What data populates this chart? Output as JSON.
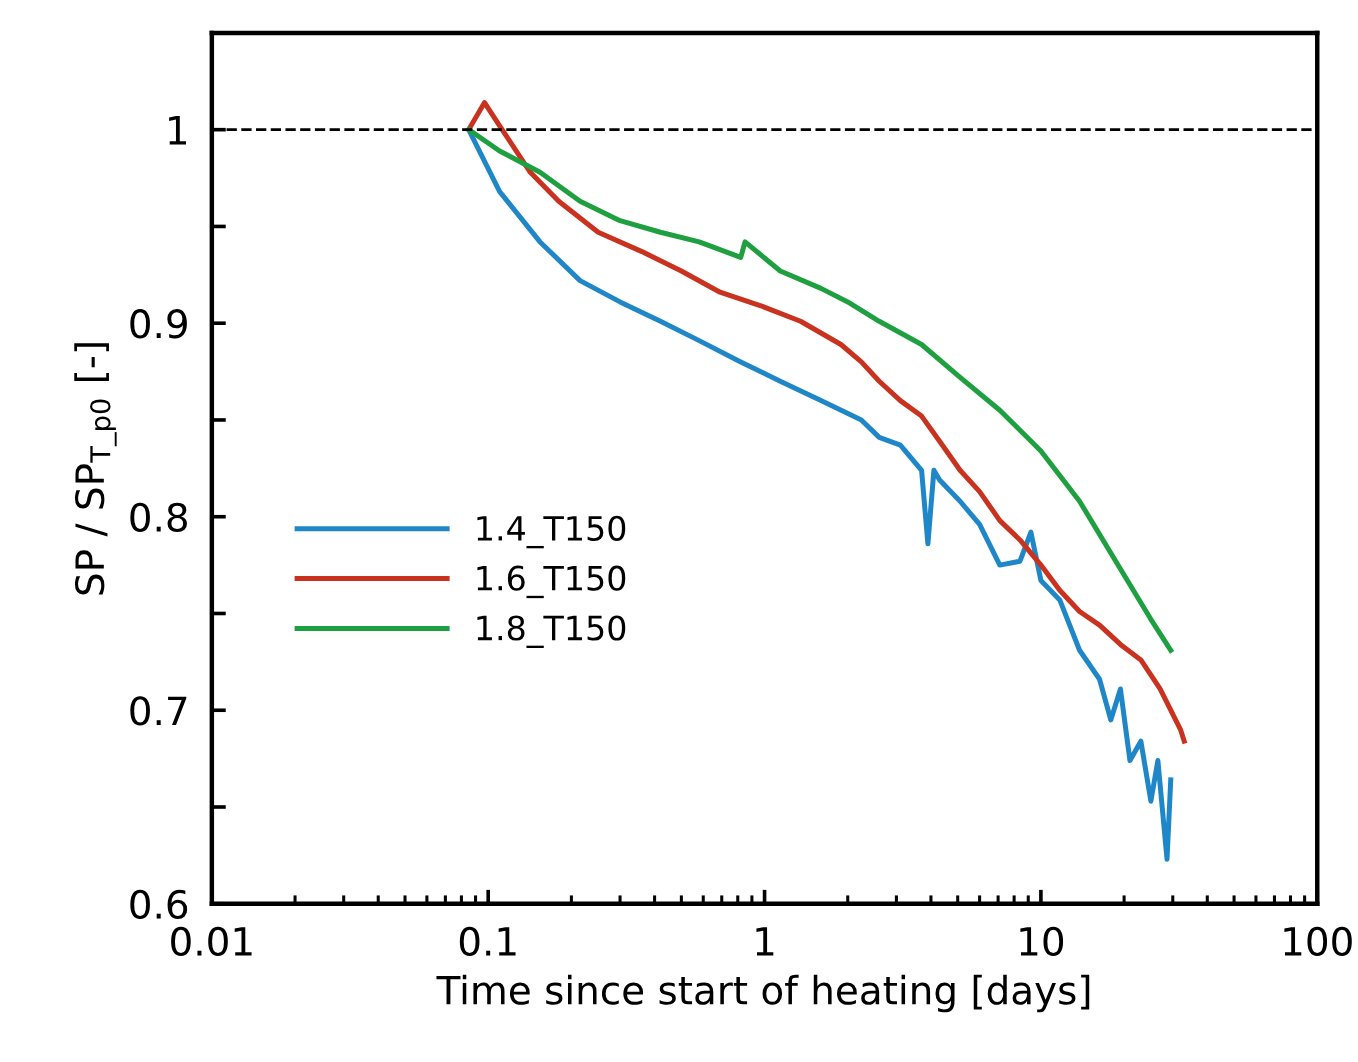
{
  "chart_data": {
    "type": "line",
    "xlabel": "Time since start of heating [days]",
    "ylabel": "SP / SP$_{T_p0}$ [-]",
    "log": "x",
    "xlim": [
      0.01,
      100
    ],
    "xticks": [
      0.01,
      0.1,
      1,
      10,
      100
    ],
    "ylim": [
      0.6,
      1.05
    ],
    "yticks": [
      0.6,
      {
        "value": 0.65,
        "label": null
      },
      0.7,
      {
        "value": 0.75,
        "label": null
      },
      0.8,
      {
        "value": 0.85,
        "label": null
      },
      0.9,
      {
        "value": 0.95,
        "label": null
      },
      1
    ],
    "grid": false,
    "legend": "center left",
    "marker": "none",
    "line_style": "solid",
    "ref_lines": [
      {
        "axis": "y",
        "value": 1,
        "color": "#000000",
        "line_style": "dashed"
      }
    ],
    "series": [
      {
        "name": "1.4_T150",
        "color": "#1f87c8",
        "x": [
          0.085,
          0.11,
          0.154,
          0.215,
          0.3,
          0.42,
          0.58,
          0.82,
          1.14,
          1.6,
          2.24,
          2.6,
          3.1,
          3.7,
          3.9,
          4.1,
          4.3,
          5.1,
          6.0,
          7.1,
          8.4,
          9.2,
          10,
          11.7,
          13.8,
          16.3,
          17.9,
          19.4,
          21,
          23,
          25,
          26.5,
          28.6,
          29.5
        ],
        "values": [
          1.0,
          0.968,
          0.942,
          0.922,
          0.911,
          0.901,
          0.891,
          0.88,
          0.87,
          0.86,
          0.85,
          0.841,
          0.837,
          0.824,
          0.786,
          0.824,
          0.819,
          0.808,
          0.796,
          0.775,
          0.777,
          0.792,
          0.767,
          0.757,
          0.731,
          0.716,
          0.695,
          0.711,
          0.674,
          0.684,
          0.653,
          0.674,
          0.623,
          0.664
        ]
      },
      {
        "name": "1.6_T150",
        "color": "#c8321e",
        "x": [
          0.085,
          0.097,
          0.11,
          0.142,
          0.18,
          0.25,
          0.36,
          0.5,
          0.69,
          0.97,
          1.35,
          1.89,
          2.24,
          2.6,
          3.1,
          3.7,
          4.3,
          5.1,
          6.0,
          7.1,
          8.4,
          10,
          11.7,
          13.8,
          16.3,
          19.4,
          23,
          27,
          32,
          33
        ],
        "values": [
          1.0,
          1.014,
          1.002,
          0.978,
          0.963,
          0.947,
          0.937,
          0.927,
          0.916,
          0.909,
          0.901,
          0.889,
          0.88,
          0.87,
          0.86,
          0.852,
          0.839,
          0.824,
          0.813,
          0.798,
          0.788,
          0.775,
          0.762,
          0.751,
          0.744,
          0.734,
          0.726,
          0.711,
          0.69,
          0.684
        ]
      },
      {
        "name": "1.8_T150",
        "color": "#1fa040",
        "x": [
          0.085,
          0.11,
          0.154,
          0.215,
          0.3,
          0.42,
          0.58,
          0.82,
          0.85,
          1.14,
          1.6,
          2.0,
          2.6,
          3.7,
          5.1,
          7.1,
          10,
          13.8,
          19.4,
          25,
          29.5
        ],
        "values": [
          1.0,
          0.989,
          0.978,
          0.963,
          0.953,
          0.947,
          0.942,
          0.934,
          0.942,
          0.927,
          0.918,
          0.911,
          0.901,
          0.889,
          0.872,
          0.855,
          0.834,
          0.808,
          0.773,
          0.747,
          0.731
        ]
      }
    ]
  }
}
